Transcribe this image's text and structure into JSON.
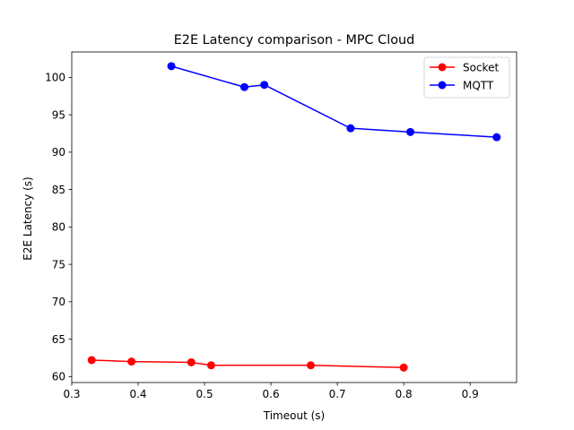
{
  "chart_data": {
    "type": "line",
    "title": "E2E Latency comparison - MPC Cloud",
    "xlabel": "Timeout (s)",
    "ylabel": "E2E Latency (s)",
    "xlim": [
      0.3,
      0.97
    ],
    "ylim": [
      59.2,
      103.4
    ],
    "xticks": [
      0.3,
      0.4,
      0.5,
      0.6,
      0.7,
      0.8,
      0.9
    ],
    "xtick_labels": [
      "0.3",
      "0.4",
      "0.5",
      "0.6",
      "0.7",
      "0.8",
      "0.9"
    ],
    "yticks": [
      60,
      65,
      70,
      75,
      80,
      85,
      90,
      95,
      100
    ],
    "ytick_labels": [
      "60",
      "65",
      "70",
      "75",
      "80",
      "85",
      "90",
      "95",
      "100"
    ],
    "grid": false,
    "legend_position": "top-right",
    "series": [
      {
        "name": "Socket",
        "color": "#ff0000",
        "x": [
          0.33,
          0.39,
          0.48,
          0.51,
          0.66,
          0.8
        ],
        "y": [
          62.2,
          62.0,
          61.9,
          61.5,
          61.5,
          61.2
        ]
      },
      {
        "name": "MQTT",
        "color": "#0000ff",
        "x": [
          0.45,
          0.56,
          0.59,
          0.72,
          0.81,
          0.94
        ],
        "y": [
          101.5,
          98.7,
          99.0,
          93.2,
          92.7,
          92.0
        ]
      }
    ]
  }
}
